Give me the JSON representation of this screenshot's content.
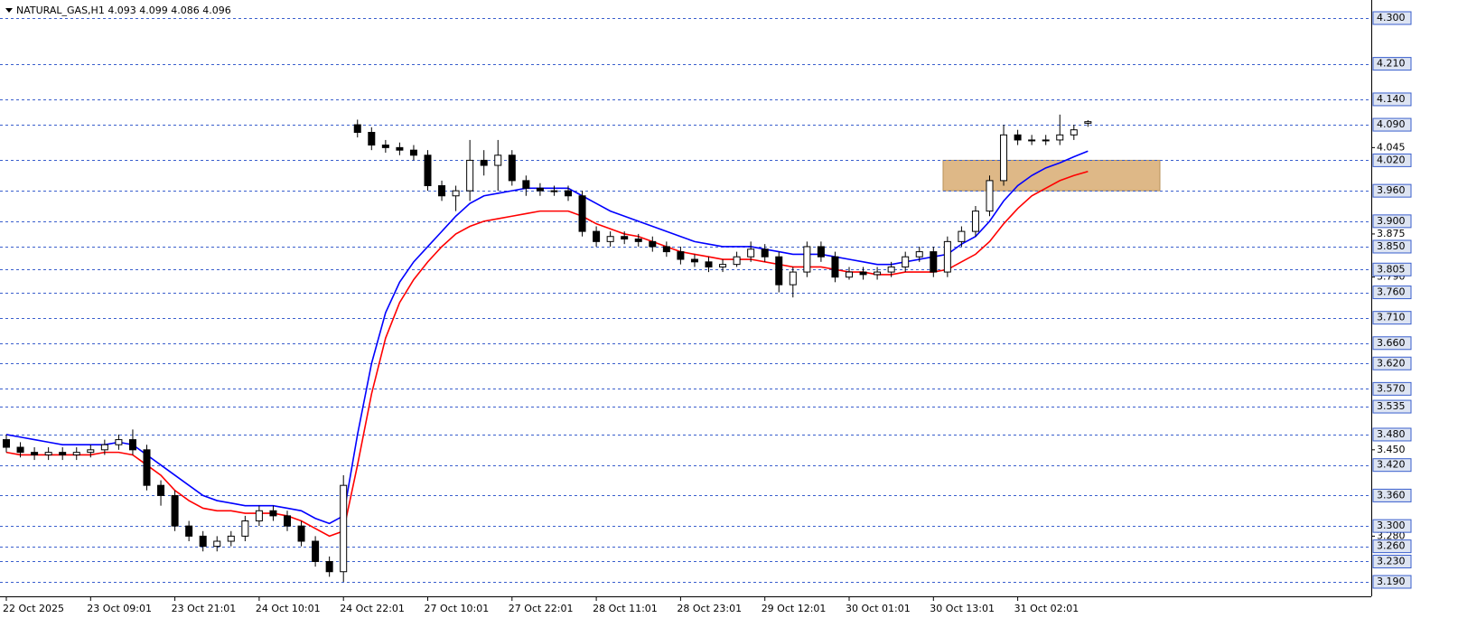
{
  "chart_data": {
    "type": "candlestick",
    "title": "NATURAL_GAS,H1  4.093 4.099 4.086 4.096",
    "categories": [
      "22 Oct 2025",
      null,
      null,
      null,
      null,
      null,
      "23 Oct 09:01",
      null,
      null,
      null,
      null,
      null,
      "23 Oct 21:01",
      null,
      null,
      null,
      null,
      null,
      "24 Oct 10:01",
      null,
      null,
      null,
      null,
      null,
      "24 Oct 22:01",
      null,
      null,
      null,
      null,
      null,
      "27 Oct 10:01",
      null,
      null,
      null,
      null,
      null,
      "27 Oct 22:01",
      null,
      null,
      null,
      null,
      null,
      "28 Oct 11:01",
      null,
      null,
      null,
      null,
      null,
      "28 Oct 23:01",
      null,
      null,
      null,
      null,
      null,
      "29 Oct 12:01",
      null,
      null,
      null,
      null,
      null,
      "30 Oct 01:01",
      null,
      null,
      null,
      null,
      null,
      "30 Oct 13:01",
      null,
      null,
      null,
      null,
      null,
      "31 Oct 02:01",
      null,
      null,
      null,
      null,
      null
    ],
    "open": [
      3.47,
      3.455,
      3.445,
      3.44,
      3.445,
      3.44,
      3.445,
      3.45,
      3.46,
      3.47,
      3.45,
      3.38,
      3.36,
      3.3,
      3.28,
      3.26,
      3.27,
      3.28,
      3.31,
      3.33,
      3.32,
      3.3,
      3.27,
      3.23,
      3.21,
      4.09,
      4.075,
      4.05,
      4.045,
      4.04,
      4.03,
      3.97,
      3.95,
      3.96,
      4.02,
      4.01,
      4.03,
      3.98,
      3.965,
      3.96,
      3.96,
      3.95,
      3.88,
      3.86,
      3.87,
      3.865,
      3.86,
      3.85,
      3.84,
      3.825,
      3.82,
      3.81,
      3.815,
      3.83,
      3.845,
      3.83,
      3.775,
      3.8,
      3.85,
      3.83,
      3.79,
      3.8,
      3.795,
      3.8,
      3.81,
      3.83,
      3.84,
      3.8,
      3.86,
      3.88,
      3.92,
      3.98,
      4.07,
      4.06,
      4.06,
      4.06,
      4.07,
      4.093
    ],
    "high": [
      3.48,
      3.465,
      3.455,
      3.455,
      3.455,
      3.455,
      3.46,
      3.47,
      3.48,
      3.49,
      3.46,
      3.39,
      3.37,
      3.31,
      3.29,
      3.28,
      3.29,
      3.32,
      3.34,
      3.34,
      3.33,
      3.31,
      3.28,
      3.24,
      3.4,
      4.1,
      4.085,
      4.06,
      4.055,
      4.05,
      4.04,
      3.98,
      3.97,
      4.06,
      4.04,
      4.06,
      4.04,
      3.99,
      3.975,
      3.97,
      3.97,
      3.96,
      3.89,
      3.88,
      3.88,
      3.875,
      3.87,
      3.86,
      3.85,
      3.835,
      3.83,
      3.825,
      3.84,
      3.86,
      3.855,
      3.84,
      3.81,
      3.86,
      3.86,
      3.84,
      3.81,
      3.81,
      3.81,
      3.82,
      3.84,
      3.85,
      3.85,
      3.87,
      3.89,
      3.93,
      3.99,
      4.09,
      4.08,
      4.07,
      4.07,
      4.11,
      4.09,
      4.099
    ],
    "low": [
      3.445,
      3.435,
      3.43,
      3.43,
      3.43,
      3.43,
      3.435,
      3.44,
      3.45,
      3.44,
      3.37,
      3.34,
      3.29,
      3.27,
      3.25,
      3.25,
      3.26,
      3.27,
      3.3,
      3.31,
      3.29,
      3.26,
      3.22,
      3.2,
      3.19,
      4.065,
      4.04,
      4.035,
      4.03,
      4.02,
      3.96,
      3.94,
      3.92,
      3.94,
      3.99,
      3.96,
      3.97,
      3.95,
      3.95,
      3.95,
      3.94,
      3.87,
      3.85,
      3.85,
      3.855,
      3.85,
      3.84,
      3.83,
      3.815,
      3.81,
      3.8,
      3.8,
      3.81,
      3.82,
      3.82,
      3.76,
      3.75,
      3.79,
      3.82,
      3.78,
      3.785,
      3.785,
      3.785,
      3.79,
      3.8,
      3.82,
      3.79,
      3.79,
      3.85,
      3.87,
      3.91,
      3.97,
      4.05,
      4.05,
      4.05,
      4.05,
      4.06,
      4.086
    ],
    "close": [
      3.455,
      3.445,
      3.44,
      3.445,
      3.44,
      3.445,
      3.45,
      3.46,
      3.47,
      3.45,
      3.38,
      3.36,
      3.3,
      3.28,
      3.26,
      3.27,
      3.28,
      3.31,
      3.33,
      3.32,
      3.3,
      3.27,
      3.23,
      3.21,
      3.38,
      4.075,
      4.05,
      4.045,
      4.04,
      4.03,
      3.97,
      3.95,
      3.96,
      4.02,
      4.01,
      4.03,
      3.98,
      3.965,
      3.96,
      3.96,
      3.95,
      3.88,
      3.86,
      3.87,
      3.865,
      3.86,
      3.85,
      3.84,
      3.825,
      3.82,
      3.81,
      3.815,
      3.83,
      3.845,
      3.83,
      3.775,
      3.8,
      3.85,
      3.83,
      3.79,
      3.8,
      3.795,
      3.8,
      3.81,
      3.83,
      3.84,
      3.8,
      3.86,
      3.88,
      3.92,
      3.98,
      4.07,
      4.06,
      4.06,
      4.06,
      4.07,
      4.08,
      4.096
    ],
    "lines": [
      {
        "color": "#0000ff",
        "values": [
          3.48,
          3.475,
          3.47,
          3.465,
          3.46,
          3.46,
          3.46,
          3.46,
          3.465,
          3.46,
          3.44,
          3.42,
          3.4,
          3.38,
          3.36,
          3.35,
          3.345,
          3.34,
          3.34,
          3.34,
          3.335,
          3.33,
          3.315,
          3.305,
          3.32,
          3.48,
          3.62,
          3.72,
          3.78,
          3.82,
          3.85,
          3.88,
          3.91,
          3.935,
          3.95,
          3.955,
          3.96,
          3.965,
          3.965,
          3.965,
          3.965,
          3.95,
          3.935,
          3.92,
          3.91,
          3.9,
          3.89,
          3.88,
          3.87,
          3.86,
          3.855,
          3.85,
          3.85,
          3.85,
          3.845,
          3.84,
          3.835,
          3.835,
          3.835,
          3.83,
          3.825,
          3.82,
          3.815,
          3.815,
          3.82,
          3.825,
          3.83,
          3.835,
          3.855,
          3.87,
          3.9,
          3.94,
          3.97,
          3.99,
          4.005,
          4.015,
          4.027,
          4.038
        ]
      },
      {
        "color": "#ff0000",
        "values": [
          3.445,
          3.44,
          3.44,
          3.44,
          3.44,
          3.44,
          3.44,
          3.445,
          3.445,
          3.44,
          3.42,
          3.4,
          3.37,
          3.35,
          3.335,
          3.33,
          3.33,
          3.325,
          3.325,
          3.325,
          3.32,
          3.31,
          3.295,
          3.28,
          3.29,
          3.42,
          3.56,
          3.67,
          3.74,
          3.785,
          3.82,
          3.85,
          3.875,
          3.89,
          3.9,
          3.905,
          3.91,
          3.915,
          3.92,
          3.92,
          3.92,
          3.91,
          3.895,
          3.885,
          3.875,
          3.87,
          3.86,
          3.85,
          3.84,
          3.835,
          3.83,
          3.825,
          3.825,
          3.825,
          3.82,
          3.815,
          3.81,
          3.81,
          3.81,
          3.805,
          3.8,
          3.8,
          3.795,
          3.795,
          3.8,
          3.8,
          3.8,
          3.805,
          3.82,
          3.835,
          3.86,
          3.895,
          3.925,
          3.95,
          3.965,
          3.98,
          3.99,
          3.998
        ]
      }
    ],
    "zone": {
      "color": "#deb887",
      "ylim": [
        3.96,
        4.02
      ]
    },
    "ylim": [
      3.1615,
      4.3356
    ],
    "levels": [
      {
        "value": 4.3,
        "label": "4.300"
      },
      {
        "value": 4.21,
        "label": "4.210"
      },
      {
        "value": 4.14,
        "label": "4.140"
      },
      {
        "value": 4.09,
        "label": "4.090"
      },
      {
        "value": 4.02,
        "label": "4.020"
      },
      {
        "value": 3.96,
        "label": "3.960"
      },
      {
        "value": 3.9,
        "label": "3.900"
      },
      {
        "value": 3.85,
        "label": "3.850"
      },
      {
        "value": 3.805,
        "label": "3.805"
      },
      {
        "value": 3.76,
        "label": "3.760"
      },
      {
        "value": 3.71,
        "label": "3.710"
      },
      {
        "value": 3.66,
        "label": "3.660"
      },
      {
        "value": 3.62,
        "label": "3.620"
      },
      {
        "value": 3.57,
        "label": "3.570"
      },
      {
        "value": 3.535,
        "label": "3.535"
      },
      {
        "value": 3.48,
        "label": "3.480"
      },
      {
        "value": 3.42,
        "label": "3.420"
      },
      {
        "value": 3.36,
        "label": "3.360"
      },
      {
        "value": 3.3,
        "label": "3.300"
      },
      {
        "value": 3.26,
        "label": "3.260"
      },
      {
        "value": 3.23,
        "label": "3.230"
      },
      {
        "value": 3.19,
        "label": "3.190"
      }
    ],
    "yticks": [
      {
        "value": 4.045,
        "label": "4.045"
      },
      {
        "value": 3.875,
        "label": "3.875"
      },
      {
        "value": 3.79,
        "label": "3.790"
      },
      {
        "value": 3.45,
        "label": "3.450"
      },
      {
        "value": 3.28,
        "label": "3.280"
      }
    ]
  }
}
